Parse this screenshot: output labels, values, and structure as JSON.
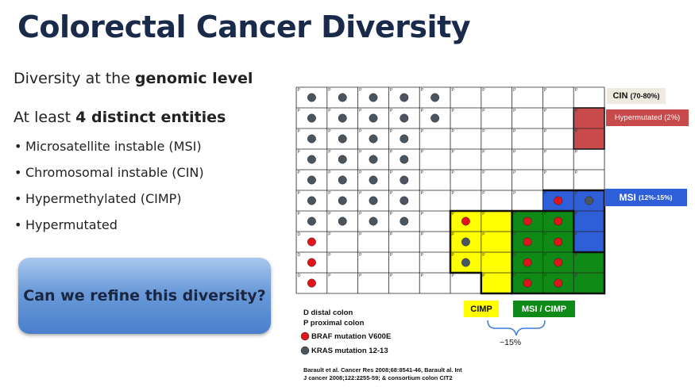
{
  "slide": {
    "title": "Colorectal Cancer Diversity",
    "line1_prefix": "Diversity at the ",
    "line1_bold": "genomic level",
    "line2_prefix": "At least ",
    "line2_bold": "4 distinct entities",
    "bullets": [
      "Microsatellite instable (MSI)",
      "Chromosomal instable (CIN)",
      "Hypermethylated (CIMP)",
      "Hypermutated"
    ],
    "question": "Can we refine this diversity?"
  },
  "diagram": {
    "cell_prefix_default": "P",
    "cell_prefix_distal": "D",
    "distal_cells": [
      [
        7,
        0
      ],
      [
        8,
        0
      ],
      [
        9,
        0
      ]
    ],
    "grey_dots": [
      [
        0,
        0
      ],
      [
        0,
        1
      ],
      [
        0,
        2
      ],
      [
        0,
        3
      ],
      [
        0,
        4
      ],
      [
        1,
        0
      ],
      [
        1,
        1
      ],
      [
        1,
        2
      ],
      [
        1,
        3
      ],
      [
        1,
        4
      ],
      [
        2,
        0
      ],
      [
        2,
        1
      ],
      [
        2,
        2
      ],
      [
        2,
        3
      ],
      [
        3,
        0
      ],
      [
        3,
        1
      ],
      [
        3,
        2
      ],
      [
        3,
        3
      ],
      [
        4,
        0
      ],
      [
        4,
        1
      ],
      [
        4,
        2
      ],
      [
        4,
        3
      ],
      [
        5,
        0
      ],
      [
        5,
        1
      ],
      [
        5,
        2
      ],
      [
        5,
        3
      ],
      [
        6,
        0
      ],
      [
        6,
        1
      ],
      [
        6,
        2
      ],
      [
        6,
        3
      ],
      [
        7,
        5
      ],
      [
        8,
        5
      ],
      [
        5,
        9
      ]
    ],
    "red_dots": [
      [
        7,
        0
      ],
      [
        8,
        0
      ],
      [
        9,
        0
      ],
      [
        6,
        5
      ],
      [
        6,
        7
      ],
      [
        6,
        8
      ],
      [
        7,
        7
      ],
      [
        7,
        8
      ],
      [
        8,
        7
      ],
      [
        8,
        8
      ],
      [
        9,
        7
      ],
      [
        9,
        8
      ],
      [
        5,
        8
      ]
    ],
    "labels": {
      "cin": "CIN",
      "cin_pct": "(70-80%)",
      "hyper": "Hypermutated (2%)",
      "msi": "MSI",
      "msi_pct": "(12%-15%)",
      "cimp": "CIMP",
      "msi_cimp": "MSI / CIMP",
      "approx": "~15%"
    },
    "legend": {
      "distal": "D distal colon",
      "proximal": "P proximal colon",
      "braf": "BRAF mutation V600E",
      "kras": "KRAS mutation 12-13"
    },
    "reference_line1": "Barault et al. Cancer Res 2008;68:8541-46, Barault al. Int",
    "reference_line2": "J cancer 2008;122:2255-59; & consortium colon CIT2",
    "colors": {
      "cin_box": "#eeeae0",
      "hyper": "#c84a4a",
      "msi": "#2f5fd8",
      "cimp": "#ffff00",
      "msi_cimp": "#0f8a17",
      "grey_dot": "#4a5560",
      "red_dot": "#e0141b"
    }
  }
}
